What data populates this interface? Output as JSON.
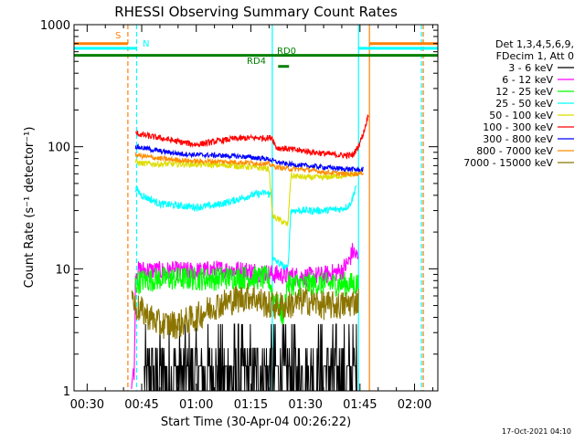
{
  "chart_data": {
    "type": "line",
    "title": "RHESSI Observing Summary Count Rates",
    "xlabel": "Start Time (30-Apr-04 00:26:22)",
    "ylabel": "Count Rate (s⁻¹ detector⁻¹)",
    "y_scale": "log",
    "ylim": [
      1,
      1000
    ],
    "xlim_minutes": [
      26.4,
      126.4
    ],
    "x_ticks": [
      {
        "label": "00:30",
        "minute": 30
      },
      {
        "label": "00:45",
        "minute": 45
      },
      {
        "label": "01:00",
        "minute": 60
      },
      {
        "label": "01:15",
        "minute": 75
      },
      {
        "label": "01:30",
        "minute": 90
      },
      {
        "label": "01:45",
        "minute": 105
      },
      {
        "label": "02:00",
        "minute": 120
      }
    ],
    "y_ticks": [
      {
        "label": "1",
        "value": 1
      },
      {
        "label": "10",
        "value": 10
      },
      {
        "label": "100",
        "value": 100
      },
      {
        "label": "1000",
        "value": 1000
      }
    ],
    "legend": {
      "header": [
        "Det 1,3,4,5,6,9,",
        "FDecim 1, Att 0"
      ],
      "placement": "right",
      "entries": [
        {
          "label": "3 - 6 keV",
          "color": "#000000"
        },
        {
          "label": "6 - 12 keV",
          "color": "#ff00ff"
        },
        {
          "label": "12 - 25 keV",
          "color": "#00ff00"
        },
        {
          "label": "25 - 50 keV",
          "color": "#00ffff"
        },
        {
          "label": "50 - 100 keV",
          "color": "#dddd00"
        },
        {
          "label": "100 - 300 keV",
          "color": "#ff0000"
        },
        {
          "label": "300 - 800 keV",
          "color": "#0000ff"
        },
        {
          "label": "800 - 7000 keV",
          "color": "#ff8c00"
        },
        {
          "label": "7000 - 15000 keV",
          "color": "#8b7500"
        }
      ]
    },
    "status_bars": [
      {
        "label": "S",
        "color": "#ff8000",
        "value": 700,
        "segments": [
          [
            26.4,
            41.2
          ],
          [
            107.5,
            126.4
          ]
        ]
      },
      {
        "label": "N",
        "color": "#00ffff",
        "value": 640,
        "segments": [
          [
            26.4,
            43.6
          ],
          [
            104.5,
            126.4
          ]
        ]
      },
      {
        "label": "RD0",
        "color": "#008000",
        "value": 560,
        "segments": [
          [
            26.4,
            126.4
          ]
        ]
      },
      {
        "label": "RD4",
        "color": "#008000",
        "value": 455,
        "segments": [
          [
            82.5,
            85.5
          ]
        ]
      }
    ],
    "vertical_markers": [
      {
        "minute": 41.2,
        "color": "#ff8000",
        "style": "dashed"
      },
      {
        "minute": 43.6,
        "color": "#00ffff",
        "style": "dashed"
      },
      {
        "minute": 80.9,
        "color": "#00ffff",
        "style": "solid"
      },
      {
        "minute": 104.6,
        "color": "#00ffff",
        "style": "solid"
      },
      {
        "minute": 107.6,
        "color": "#ff8000",
        "style": "solid"
      },
      {
        "minute": 121.9,
        "color": "#00ffff",
        "style": "dashed"
      },
      {
        "minute": 122.4,
        "color": "#ff8000",
        "style": "dashed"
      }
    ],
    "series": [
      {
        "name": "3 - 6 keV",
        "color": "#000000",
        "noise": 0.55,
        "x": [
          45.7,
          50,
          60,
          70,
          80,
          90,
          100,
          104.6
        ],
        "y": [
          1.6,
          1.6,
          1.6,
          1.6,
          1.6,
          1.6,
          1.6,
          1.6
        ]
      },
      {
        "name": "6 - 12 keV",
        "color": "#ff00ff",
        "noise": 0.08,
        "x": [
          42.2,
          43,
          43.3,
          45,
          50,
          55,
          60,
          65,
          70,
          75,
          80,
          85,
          90,
          95,
          100,
          102,
          103,
          104.6
        ],
        "y": [
          1.2,
          1.5,
          9.5,
          9.8,
          9.6,
          9.6,
          9.5,
          9.8,
          9.8,
          9.6,
          9.1,
          8.8,
          8.6,
          8.8,
          9.6,
          11.5,
          14,
          12
        ]
      },
      {
        "name": "12 - 25 keV",
        "color": "#00ff00",
        "noise": 0.1,
        "x": [
          43.3,
          45,
          50,
          55,
          60,
          65,
          70,
          75,
          80,
          81,
          82,
          84,
          85,
          90,
          95,
          100,
          104.6
        ],
        "y": [
          7.5,
          8,
          8.3,
          8.3,
          8.3,
          8.3,
          8.5,
          8.5,
          8.3,
          6,
          5.3,
          4,
          7.5,
          7.5,
          7.5,
          7.5,
          7.5
        ]
      },
      {
        "name": "25 - 50 keV",
        "color": "#00ffff",
        "noise": 0.03,
        "x": [
          43.3,
          45,
          50,
          55,
          60,
          65,
          70,
          75,
          79,
          80.8,
          81,
          84,
          85.2,
          86,
          90,
          95,
          100,
          102,
          103,
          104
        ],
        "y": [
          46,
          40,
          34,
          33,
          32,
          33,
          36,
          40,
          42,
          40,
          12,
          10.5,
          10,
          30,
          30,
          30,
          31,
          33,
          38,
          50
        ]
      },
      {
        "name": "50 - 100 keV",
        "color": "#dddd00",
        "noise": 0.025,
        "x": [
          43.3,
          45,
          50,
          55,
          60,
          65,
          70,
          75,
          80,
          81,
          84,
          85.2,
          86,
          90,
          95,
          100,
          104
        ],
        "y": [
          75,
          73,
          72,
          72,
          72,
          71,
          70,
          68,
          66,
          27,
          24,
          23,
          58,
          56,
          56,
          58,
          60
        ]
      },
      {
        "name": "100 - 300 keV",
        "color": "#ff0000",
        "noise": 0.025,
        "x": [
          43.3,
          45,
          50,
          55,
          60,
          65,
          70,
          75,
          80,
          80.8,
          82,
          85,
          90,
          95,
          100,
          103,
          104.5,
          106,
          107,
          107.5
        ],
        "y": [
          130,
          125,
          118,
          110,
          104,
          110,
          116,
          118,
          118,
          120,
          98,
          96,
          92,
          88,
          85,
          85,
          100,
          130,
          170,
          190
        ]
      },
      {
        "name": "300 - 800 keV",
        "color": "#0000ff",
        "noise": 0.02,
        "x": [
          43.3,
          45,
          50,
          55,
          60,
          65,
          70,
          75,
          80,
          82,
          85,
          90,
          95,
          100,
          104,
          105,
          106
        ],
        "y": [
          100,
          98,
          92,
          88,
          86,
          85,
          84,
          82,
          79,
          75,
          72,
          70,
          68,
          66,
          65,
          64,
          65
        ]
      },
      {
        "name": "800 - 7000 keV",
        "color": "#ff8c00",
        "noise": 0.02,
        "x": [
          43.3,
          45,
          50,
          55,
          60,
          65,
          70,
          75,
          80,
          82,
          85,
          90,
          95,
          100,
          104,
          105,
          106
        ],
        "y": [
          86,
          84,
          80,
          78,
          76,
          76,
          75,
          74,
          72,
          68,
          66,
          65,
          62,
          60,
          60,
          60,
          62
        ]
      },
      {
        "name": "7000 - 15000 keV",
        "color": "#8b7500",
        "noise": 0.12,
        "x": [
          42.3,
          43,
          45,
          50,
          55,
          60,
          65,
          70,
          75,
          80,
          85,
          90,
          95,
          100,
          104.6
        ],
        "y": [
          6.5,
          5,
          4.5,
          3.5,
          3.5,
          4,
          5,
          5.5,
          6,
          5,
          5,
          5.5,
          5,
          5,
          5.5
        ]
      }
    ],
    "footer_stamp": "17-Oct-2021 04:10",
    "grid": false
  }
}
